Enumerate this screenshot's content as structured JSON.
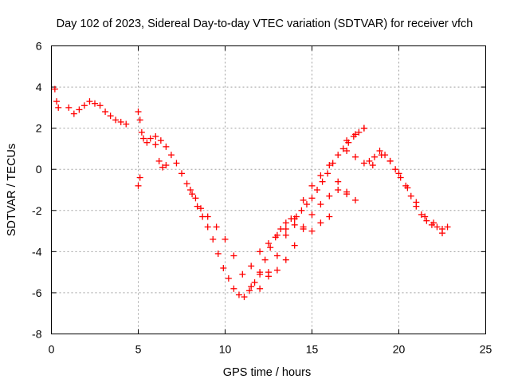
{
  "chart_data": {
    "type": "scatter",
    "title": "Day 102 of 2023, Sidereal Day-to-day VTEC variation (SDTVAR) for receiver vfch",
    "xlabel": "GPS time / hours",
    "ylabel": "SDTVAR / TECUs",
    "xlim": [
      0,
      25
    ],
    "ylim": [
      -8,
      6
    ],
    "xticks": [
      "0",
      "5",
      "10",
      "15",
      "20",
      "25"
    ],
    "yticks": [
      "-8",
      "-6",
      "-4",
      "-2",
      "0",
      "2",
      "4",
      "6"
    ],
    "grid": true,
    "marker": "+",
    "color": "#ff0000",
    "series": [
      {
        "name": "SDTVAR",
        "x": [
          0.2,
          0.3,
          0.4,
          1.0,
          1.3,
          1.6,
          1.9,
          2.2,
          2.5,
          2.8,
          3.1,
          3.4,
          3.7,
          4.0,
          4.3,
          5.0,
          5.1,
          5.2,
          5.3,
          5.5,
          5.7,
          6.0,
          6.3,
          6.6,
          6.9,
          7.2,
          7.5,
          7.8,
          8.1,
          8.4,
          8.7,
          9.0,
          9.3,
          9.6,
          9.9,
          10.2,
          10.5,
          10.8,
          11.1,
          11.4,
          11.7,
          12.0,
          12.3,
          12.6,
          12.9,
          13.2,
          13.5,
          13.8,
          14.1,
          14.4,
          14.7,
          15.0,
          15.3,
          15.6,
          15.9,
          16.2,
          16.5,
          16.8,
          17.1,
          17.4,
          17.7,
          18.0,
          18.3,
          18.6,
          18.9,
          19.2,
          19.5,
          19.8,
          20.1,
          20.4,
          20.7,
          21.0,
          21.3,
          21.6,
          21.9,
          22.2,
          22.5,
          22.8,
          5.0,
          5.1,
          6.0,
          6.2,
          6.4,
          6.6,
          8.0,
          8.3,
          8.6,
          9.0,
          9.5,
          10.0,
          10.5,
          11.0,
          11.5,
          12.0,
          12.5,
          13.0,
          13.5,
          14.0,
          14.5,
          15.0,
          15.5,
          16.0,
          16.5,
          17.0,
          17.5,
          11.5,
          12.0,
          12.5,
          13.0,
          13.5,
          14.0,
          14.5,
          15.0,
          15.5,
          16.0,
          16.5,
          17.0,
          12.0,
          12.5,
          13.0,
          13.5,
          14.0,
          14.5,
          15.0,
          15.5,
          16.0,
          17.0,
          17.5,
          18.0,
          18.5,
          19.0,
          19.5,
          20.0,
          20.5,
          21.0,
          21.5,
          22.0,
          22.5,
          17.0,
          17.5,
          18.0
        ],
        "y": [
          3.9,
          3.3,
          3.0,
          3.0,
          2.7,
          2.9,
          3.1,
          3.3,
          3.2,
          3.1,
          2.8,
          2.6,
          2.4,
          2.3,
          2.2,
          2.8,
          2.4,
          1.8,
          1.5,
          1.3,
          1.5,
          1.6,
          1.4,
          1.1,
          0.7,
          0.3,
          -0.2,
          -0.7,
          -1.2,
          -1.8,
          -2.3,
          -2.8,
          -3.4,
          -4.1,
          -4.8,
          -5.3,
          -5.8,
          -6.1,
          -6.2,
          -5.9,
          -5.5,
          -5.0,
          -4.4,
          -3.8,
          -3.3,
          -2.9,
          -2.6,
          -2.4,
          -2.3,
          -2.0,
          -1.7,
          -1.4,
          -1.0,
          -0.6,
          -0.2,
          0.3,
          0.7,
          1.0,
          1.3,
          1.6,
          1.8,
          2.0,
          0.4,
          0.6,
          0.9,
          0.7,
          0.4,
          0.0,
          -0.4,
          -0.8,
          -1.3,
          -1.8,
          -2.2,
          -2.5,
          -2.7,
          -2.8,
          -2.9,
          -2.8,
          -0.8,
          -0.4,
          1.2,
          0.4,
          0.1,
          0.2,
          -1.0,
          -1.4,
          -1.9,
          -2.3,
          -2.8,
          -3.4,
          -4.2,
          -5.1,
          -5.7,
          -5.8,
          -5.0,
          -4.2,
          -3.2,
          -2.4,
          -1.5,
          -0.8,
          -0.3,
          0.2,
          -0.6,
          -1.1,
          -1.5,
          -4.7,
          -5.1,
          -5.2,
          -4.9,
          -4.4,
          -3.7,
          -2.9,
          -2.2,
          -1.7,
          -1.3,
          -1.0,
          -1.2,
          -4.0,
          -3.6,
          -3.2,
          -2.9,
          -2.7,
          -2.8,
          -3.0,
          -2.6,
          -2.3,
          0.9,
          0.6,
          0.3,
          0.2,
          0.7,
          0.4,
          -0.2,
          -0.9,
          -1.6,
          -2.3,
          -2.6,
          -3.1,
          1.4,
          1.7,
          2.0
        ]
      }
    ]
  }
}
